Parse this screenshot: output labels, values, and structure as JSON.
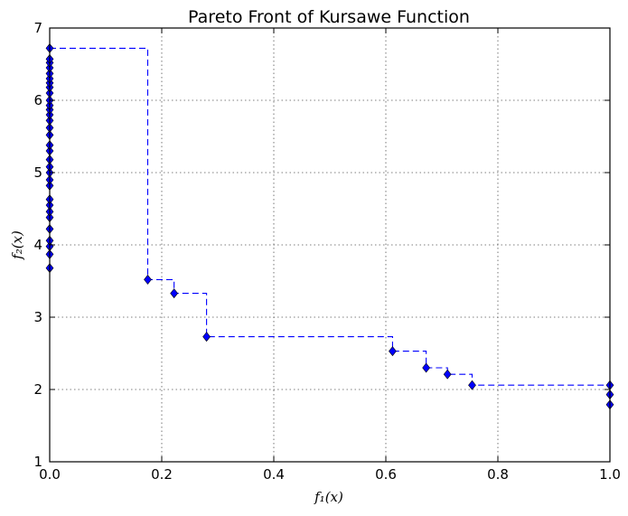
{
  "chart_data": {
    "type": "scatter",
    "title": "Pareto Front of Kursawe Function",
    "xlabel": "f₁(x)",
    "ylabel": "f₂(x)",
    "xlim": [
      0.0,
      1.0
    ],
    "ylim": [
      1,
      7
    ],
    "xticks": [
      "0.0",
      "0.2",
      "0.4",
      "0.6",
      "0.8",
      "1.0"
    ],
    "yticks": [
      "1",
      "2",
      "3",
      "4",
      "5",
      "6",
      "7"
    ],
    "grid": true,
    "series": [
      {
        "color": "#0000ff",
        "marker": "diamond",
        "line": "dashed-step",
        "points": [
          [
            0.0,
            3.68
          ],
          [
            0.0,
            3.87
          ],
          [
            0.0,
            3.98
          ],
          [
            0.0,
            4.06
          ],
          [
            0.0,
            4.22
          ],
          [
            0.0,
            4.38
          ],
          [
            0.0,
            4.46
          ],
          [
            0.0,
            4.55
          ],
          [
            0.0,
            4.63
          ],
          [
            0.0,
            4.82
          ],
          [
            0.0,
            4.9
          ],
          [
            0.0,
            5.0
          ],
          [
            0.0,
            5.08
          ],
          [
            0.0,
            5.18
          ],
          [
            0.0,
            5.3
          ],
          [
            0.0,
            5.38
          ],
          [
            0.0,
            5.52
          ],
          [
            0.0,
            5.62
          ],
          [
            0.0,
            5.72
          ],
          [
            0.0,
            5.8
          ],
          [
            0.0,
            5.87
          ],
          [
            0.0,
            5.93
          ],
          [
            0.0,
            6.0
          ],
          [
            0.0,
            6.1
          ],
          [
            0.0,
            6.18
          ],
          [
            0.0,
            6.24
          ],
          [
            0.0,
            6.3
          ],
          [
            0.0,
            6.37
          ],
          [
            0.0,
            6.45
          ],
          [
            0.0,
            6.52
          ],
          [
            0.0,
            6.57
          ],
          [
            0.0,
            6.72
          ],
          [
            0.175,
            3.52
          ],
          [
            0.222,
            3.33
          ],
          [
            0.28,
            2.73
          ],
          [
            0.612,
            2.53
          ],
          [
            0.672,
            2.3
          ],
          [
            0.71,
            2.21
          ],
          [
            0.754,
            2.06
          ],
          [
            1.0,
            2.06
          ],
          [
            1.0,
            1.93
          ],
          [
            1.0,
            1.79
          ]
        ]
      }
    ]
  }
}
